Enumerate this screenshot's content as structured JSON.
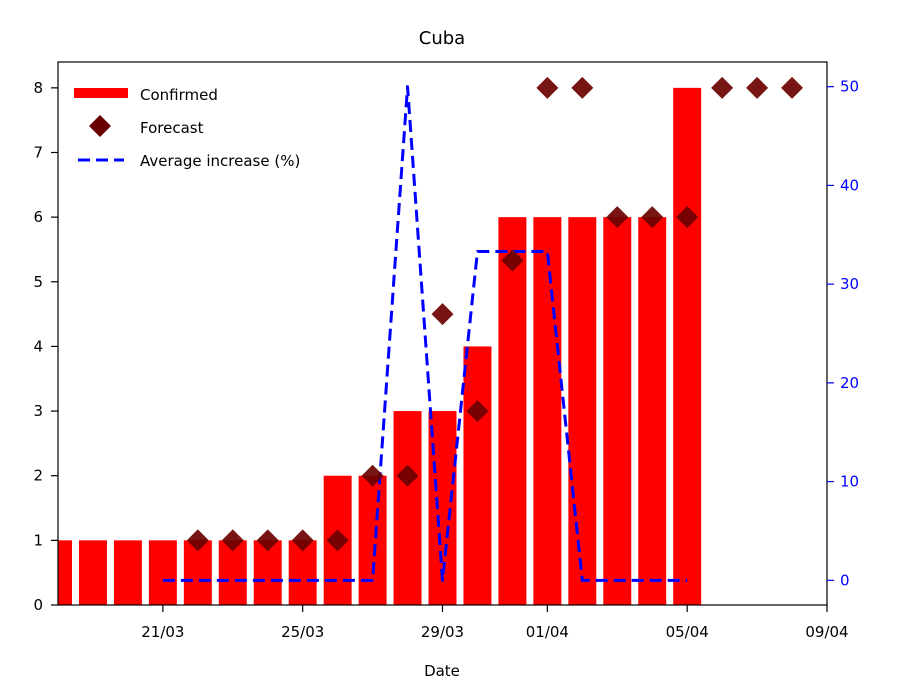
{
  "chart_data": {
    "type": "bar",
    "title": "Cuba",
    "xlabel": "Date",
    "ylabel": "",
    "ylim": [
      0,
      8.4
    ],
    "y2lim": [
      -2.5,
      52.5
    ],
    "x_domain": [
      -3,
      19
    ],
    "x_ticks": [
      {
        "pos": 0,
        "label": "21/03"
      },
      {
        "pos": 4,
        "label": "25/03"
      },
      {
        "pos": 8,
        "label": "29/03"
      },
      {
        "pos": 11,
        "label": "01/04"
      },
      {
        "pos": 15,
        "label": "05/04"
      },
      {
        "pos": 19,
        "label": "09/04"
      }
    ],
    "y_ticks": [
      0,
      1,
      2,
      3,
      4,
      5,
      6,
      7,
      8
    ],
    "y2_ticks": [
      0,
      10,
      20,
      30,
      40,
      50
    ],
    "colors": {
      "confirmed": "#ff0000",
      "forecast": "#6b0000",
      "average": "#0000ff",
      "right_axis": "#0000ff"
    },
    "series": [
      {
        "name": "Confirmed",
        "type": "bar",
        "x": [
          -3,
          -2,
          -1,
          0,
          1,
          2,
          3,
          4,
          5,
          6,
          7,
          8,
          9,
          10,
          11,
          12,
          13,
          14,
          15
        ],
        "values": [
          1,
          1,
          1,
          1,
          1,
          1,
          1,
          1,
          2,
          2,
          3,
          3,
          4,
          6,
          6,
          6,
          6,
          6,
          8
        ]
      },
      {
        "name": "Forecast",
        "type": "scatter",
        "marker": "diamond",
        "x": [
          1,
          2,
          3,
          4,
          5,
          6,
          7,
          8,
          9,
          10,
          11,
          12,
          13,
          14,
          15,
          16,
          17,
          18
        ],
        "values": [
          1,
          1,
          1,
          1,
          1,
          2,
          2,
          4.5,
          3,
          5.33,
          8,
          8,
          6,
          6,
          6,
          8,
          8,
          8
        ]
      },
      {
        "name": "Average increase (%)",
        "type": "line",
        "axis": "right",
        "x": [
          0,
          1,
          2,
          3,
          4,
          5,
          6,
          7,
          8,
          9,
          10,
          11,
          12,
          13,
          14,
          15
        ],
        "values": [
          0,
          0,
          0,
          0,
          0,
          0,
          0,
          50,
          0,
          33.3,
          33.3,
          33.3,
          0,
          0,
          0,
          0
        ]
      }
    ],
    "legend": {
      "placement": "top-left",
      "entries": [
        "Confirmed",
        "Forecast",
        "Average increase (%)"
      ]
    }
  }
}
